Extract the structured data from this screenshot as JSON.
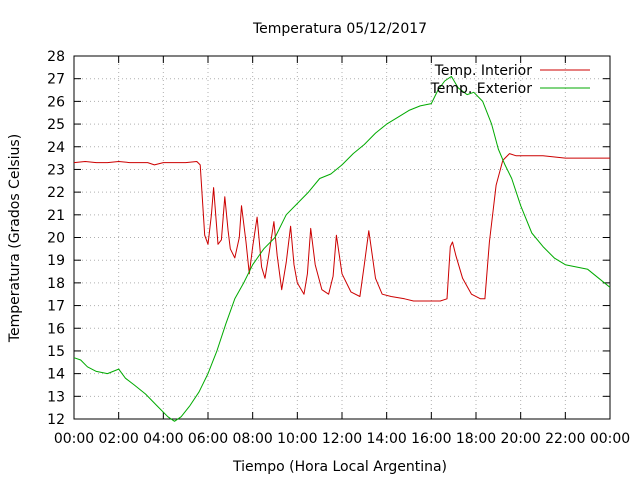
{
  "chart_data": {
    "type": "line",
    "title": "Temperatura 05/12/2017",
    "xlabel": "Tiempo (Hora Local Argentina)",
    "ylabel": "Temperatura (Grados Celsius)",
    "xlim": [
      0,
      24
    ],
    "ylim": [
      12,
      28
    ],
    "x_ticks": [
      {
        "value": 0,
        "label": "00:00"
      },
      {
        "value": 2,
        "label": "02:00"
      },
      {
        "value": 4,
        "label": "04:00"
      },
      {
        "value": 6,
        "label": "06:00"
      },
      {
        "value": 8,
        "label": "08:00"
      },
      {
        "value": 10,
        "label": "10:00"
      },
      {
        "value": 12,
        "label": "12:00"
      },
      {
        "value": 14,
        "label": "14:00"
      },
      {
        "value": 16,
        "label": "16:00"
      },
      {
        "value": 18,
        "label": "18:00"
      },
      {
        "value": 20,
        "label": "20:00"
      },
      {
        "value": 22,
        "label": "22:00"
      },
      {
        "value": 24,
        "label": "00:00"
      }
    ],
    "y_ticks": [
      12,
      13,
      14,
      15,
      16,
      17,
      18,
      19,
      20,
      21,
      22,
      23,
      24,
      25,
      26,
      27,
      28
    ],
    "grid": true,
    "legend_position": "top-right",
    "series": [
      {
        "name": "Temp. Interior",
        "color": "#cc0000",
        "x": [
          0,
          0.5,
          1,
          1.5,
          2,
          2.5,
          3,
          3.3,
          3.6,
          4,
          4.5,
          5,
          5.5,
          5.65,
          5.85,
          6.0,
          6.15,
          6.25,
          6.45,
          6.6,
          6.75,
          6.9,
          7.0,
          7.2,
          7.4,
          7.5,
          7.7,
          7.85,
          8.0,
          8.2,
          8.4,
          8.55,
          8.75,
          8.95,
          9.1,
          9.3,
          9.5,
          9.7,
          9.85,
          10.0,
          10.3,
          10.45,
          10.6,
          10.8,
          11.1,
          11.4,
          11.6,
          11.75,
          12.0,
          12.4,
          12.8,
          13.0,
          13.2,
          13.5,
          13.8,
          14.2,
          14.8,
          15.2,
          15.6,
          16.0,
          16.4,
          16.7,
          16.85,
          16.95,
          17.1,
          17.4,
          17.8,
          18.2,
          18.4,
          18.6,
          18.9,
          19.2,
          19.5,
          19.8,
          20.3,
          21,
          22,
          23,
          24
        ],
        "y": [
          23.3,
          23.35,
          23.3,
          23.3,
          23.35,
          23.3,
          23.3,
          23.3,
          23.2,
          23.3,
          23.3,
          23.3,
          23.35,
          23.2,
          20.1,
          19.7,
          21.0,
          22.2,
          19.7,
          19.9,
          21.8,
          20.3,
          19.5,
          19.1,
          20.0,
          21.4,
          19.8,
          18.4,
          19.6,
          20.9,
          18.7,
          18.2,
          19.4,
          20.7,
          19.2,
          17.7,
          18.9,
          20.5,
          18.8,
          18.0,
          17.5,
          18.4,
          20.4,
          18.8,
          17.7,
          17.5,
          18.3,
          20.1,
          18.4,
          17.6,
          17.4,
          18.8,
          20.3,
          18.2,
          17.5,
          17.4,
          17.3,
          17.2,
          17.2,
          17.2,
          17.2,
          17.3,
          19.6,
          19.8,
          19.2,
          18.2,
          17.5,
          17.3,
          17.3,
          19.8,
          22.3,
          23.4,
          23.7,
          23.6,
          23.6,
          23.6,
          23.5,
          23.5,
          23.5
        ]
      },
      {
        "name": "Temp. Exterior",
        "color": "#00aa00",
        "x": [
          0,
          0.3,
          0.6,
          1.0,
          1.5,
          2.0,
          2.3,
          2.7,
          3.2,
          3.7,
          4.2,
          4.5,
          4.8,
          5.2,
          5.6,
          6.0,
          6.4,
          6.8,
          7.2,
          7.6,
          8.0,
          8.5,
          9.0,
          9.5,
          10.0,
          10.5,
          11.0,
          11.5,
          12.0,
          12.5,
          13.0,
          13.5,
          14.0,
          14.5,
          15.0,
          15.5,
          16.0,
          16.3,
          16.6,
          16.9,
          17.2,
          17.6,
          17.9,
          18.3,
          18.7,
          19.0,
          19.3,
          19.6,
          20.0,
          20.5,
          21.0,
          21.5,
          22.0,
          22.5,
          23.0,
          23.5,
          24.0
        ],
        "y": [
          14.7,
          14.6,
          14.3,
          14.1,
          14.0,
          14.2,
          13.8,
          13.5,
          13.1,
          12.6,
          12.1,
          11.9,
          12.1,
          12.6,
          13.2,
          14.0,
          15.0,
          16.2,
          17.3,
          18.0,
          18.8,
          19.5,
          20.0,
          21.0,
          21.5,
          22.0,
          22.6,
          22.8,
          23.2,
          23.7,
          24.1,
          24.6,
          25.0,
          25.3,
          25.6,
          25.8,
          25.9,
          26.5,
          26.9,
          27.1,
          26.6,
          26.3,
          26.4,
          26.0,
          25.0,
          23.9,
          23.2,
          22.6,
          21.4,
          20.2,
          19.6,
          19.1,
          18.8,
          18.7,
          18.6,
          18.2,
          17.8
        ]
      }
    ]
  }
}
